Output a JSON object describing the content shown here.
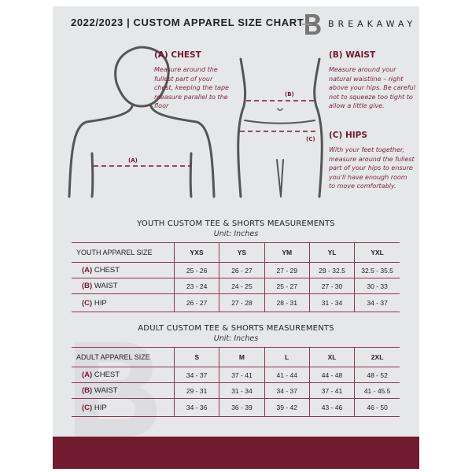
{
  "header": {
    "title": "2022/2023  |  CUSTOM APPAREL SIZE CHART",
    "brand": "BREAKAWAY",
    "logo_letter": "B"
  },
  "colors": {
    "accent": "#721a2e",
    "panel": "#e6e7e9"
  },
  "guide": {
    "chest": {
      "heading": "(A) CHEST",
      "text": "Measure around the fullest part of your chest, keeping the tape measure parallel to the floor",
      "marker": "(A)"
    },
    "waist": {
      "heading": "(B) WAIST",
      "text": "Measure around your natural waistline – right above your hips. Be careful not to squeeze too tight to allow a little give.",
      "marker": "(B)"
    },
    "hips": {
      "heading": "(C) HIPS",
      "text": "With your feet together, measure around the fullest part of your hips to ensure you'll have enough room to move comfortably.",
      "marker": "(C)"
    }
  },
  "youth": {
    "title": "YOUTH CUSTOM TEE & SHORTS MEASUREMENTS",
    "unit": "Unit: Inches",
    "header_label": "YOUTH APPAREL SIZE",
    "sizes": [
      "YXS",
      "YS",
      "YM",
      "YL",
      "YXL"
    ],
    "rows": [
      {
        "tag": "(A)",
        "label": "CHEST",
        "values": [
          "25 - 26",
          "26 - 27",
          "27 - 29",
          "29 - 32.5",
          "32.5 - 35.5"
        ]
      },
      {
        "tag": "(B)",
        "label": "WAIST",
        "values": [
          "23 - 24",
          "24 - 25",
          "25 - 27",
          "27 - 30",
          "30 - 33"
        ]
      },
      {
        "tag": "(C)",
        "label": "HIP",
        "values": [
          "26 - 27",
          "27 - 28",
          "28 - 31",
          "31 - 34",
          "34 - 37"
        ]
      }
    ]
  },
  "adult": {
    "title": "ADULT CUSTOM TEE & SHORTS MEASUREMENTS",
    "unit": "Unit: Inches",
    "header_label": "ADULT APPAREL SIZE",
    "sizes": [
      "S",
      "M",
      "L",
      "XL",
      "2XL"
    ],
    "rows": [
      {
        "tag": "(A)",
        "label": "CHEST",
        "values": [
          "34 - 37",
          "37 - 41",
          "41 - 44",
          "44 - 48",
          "48 - 52"
        ]
      },
      {
        "tag": "(B)",
        "label": "WAIST",
        "values": [
          "29 - 31",
          "31 - 34",
          "34 - 37",
          "37 - 41",
          "41 - 45.5"
        ]
      },
      {
        "tag": "(C)",
        "label": "HIP",
        "values": [
          "34 - 36",
          "36 - 39",
          "39 - 42",
          "43 - 46",
          "46 - 50"
        ]
      }
    ]
  }
}
